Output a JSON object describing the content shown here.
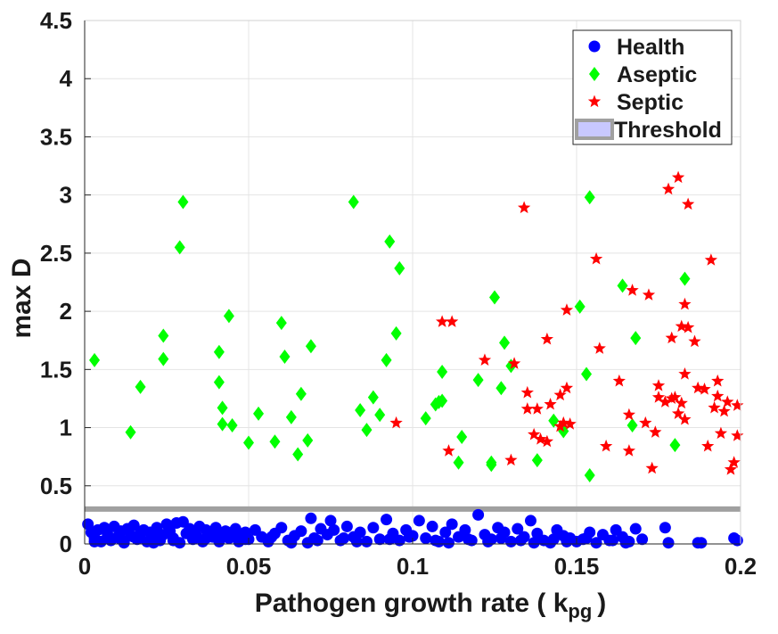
{
  "chart_data": {
    "type": "scatter",
    "xlabel": "Pathogen growth rate ( k",
    "xlabel_sub": "pg",
    "xlabel_close": ")",
    "ylabel": "max D",
    "xlim": [
      0,
      0.2
    ],
    "ylim": [
      0,
      4.5
    ],
    "x_ticks": [
      0,
      0.05,
      0.1,
      0.15,
      0.2
    ],
    "x_tick_labels": [
      "0",
      "0.05",
      "0.1",
      "0.15",
      "0.2"
    ],
    "y_ticks": [
      0,
      0.5,
      1,
      1.5,
      2,
      2.5,
      3,
      3.5,
      4,
      4.5
    ],
    "y_tick_labels": [
      "0",
      "0.5",
      "1",
      "1.5",
      "2",
      "2.5",
      "3",
      "3.5",
      "4",
      "4.5"
    ],
    "grid": true,
    "legend_position": "top-right",
    "threshold": {
      "name": "Threshold",
      "y": 0.3,
      "color": "#a0a0a0",
      "legend_fill": "#c8c8ff"
    },
    "series": [
      {
        "name": "Health",
        "marker": "circle",
        "color": "#0000ff",
        "x": [
          0.001,
          0.002,
          0.003,
          0.004,
          0.005,
          0.006,
          0.007,
          0.008,
          0.009,
          0.01,
          0.011,
          0.012,
          0.013,
          0.014,
          0.015,
          0.016,
          0.017,
          0.018,
          0.019,
          0.02,
          0.021,
          0.022,
          0.023,
          0.024,
          0.025,
          0.026,
          0.027,
          0.028,
          0.029,
          0.03,
          0.031,
          0.032,
          0.033,
          0.034,
          0.035,
          0.036,
          0.037,
          0.038,
          0.039,
          0.04,
          0.041,
          0.042,
          0.043,
          0.044,
          0.045,
          0.046,
          0.047,
          0.048,
          0.049,
          0.05,
          0.052,
          0.054,
          0.056,
          0.058,
          0.06,
          0.062,
          0.064,
          0.066,
          0.068,
          0.069,
          0.07,
          0.072,
          0.074,
          0.075,
          0.076,
          0.078,
          0.08,
          0.082,
          0.084,
          0.086,
          0.088,
          0.09,
          0.092,
          0.094,
          0.096,
          0.098,
          0.1,
          0.102,
          0.104,
          0.106,
          0.108,
          0.11,
          0.112,
          0.114,
          0.116,
          0.118,
          0.12,
          0.122,
          0.124,
          0.126,
          0.128,
          0.13,
          0.132,
          0.134,
          0.136,
          0.138,
          0.14,
          0.142,
          0.144,
          0.146,
          0.148,
          0.15,
          0.152,
          0.154,
          0.156,
          0.158,
          0.16,
          0.162,
          0.164,
          0.166,
          0.168,
          0.17,
          0.177,
          0.178,
          0.187,
          0.188,
          0.198,
          0.199,
          0.003,
          0.011,
          0.015,
          0.021,
          0.027,
          0.037,
          0.041,
          0.049,
          0.057,
          0.063,
          0.071,
          0.079,
          0.083,
          0.093,
          0.099,
          0.107,
          0.111,
          0.117,
          0.123,
          0.127,
          0.133,
          0.137,
          0.143,
          0.147,
          0.153,
          0.161,
          0.165
        ],
        "y": [
          0.17,
          0.1,
          0.05,
          0.12,
          0.02,
          0.14,
          0.08,
          0.03,
          0.15,
          0.06,
          0.11,
          0.01,
          0.13,
          0.07,
          0.16,
          0.04,
          0.09,
          0.12,
          0.02,
          0.1,
          0.06,
          0.14,
          0.03,
          0.08,
          0.17,
          0.11,
          0.05,
          0.18,
          0.01,
          0.19,
          0.09,
          0.13,
          0.04,
          0.07,
          0.15,
          0.02,
          0.12,
          0.1,
          0.06,
          0.14,
          0.03,
          0.08,
          0.11,
          0.05,
          0.09,
          0.13,
          0.02,
          0.07,
          0.1,
          0.04,
          0.12,
          0.06,
          0.02,
          0.09,
          0.14,
          0.03,
          0.07,
          0.11,
          0.01,
          0.22,
          0.05,
          0.13,
          0.08,
          0.2,
          0.12,
          0.03,
          0.15,
          0.06,
          0.1,
          0.02,
          0.14,
          0.04,
          0.21,
          0.09,
          0.03,
          0.12,
          0.07,
          0.2,
          0.05,
          0.15,
          0.02,
          0.1,
          0.17,
          0.06,
          0.12,
          0.03,
          0.25,
          0.08,
          0.04,
          0.14,
          0.1,
          0.02,
          0.13,
          0.06,
          0.2,
          0.09,
          0.03,
          0.01,
          0.12,
          0.07,
          0.05,
          0.02,
          0.04,
          0.1,
          0.01,
          0.08,
          0.03,
          0.12,
          0.06,
          0.02,
          0.13,
          0.04,
          0.14,
          0.01,
          0.01,
          0.01,
          0.05,
          0.03,
          0.02,
          0.04,
          0.06,
          0.01,
          0.03,
          0.05,
          0.02,
          0.04,
          0.06,
          0.01,
          0.03,
          0.05,
          0.02,
          0.04,
          0.06,
          0.03,
          0.01,
          0.04,
          0.02,
          0.05,
          0.03,
          0.01,
          0.04,
          0.02,
          0.05,
          0.03,
          0.01
        ]
      },
      {
        "name": "Aseptic",
        "marker": "diamond",
        "color": "#00ff00",
        "x": [
          0.003,
          0.014,
          0.017,
          0.024,
          0.024,
          0.029,
          0.03,
          0.041,
          0.041,
          0.042,
          0.042,
          0.044,
          0.045,
          0.05,
          0.053,
          0.058,
          0.06,
          0.061,
          0.063,
          0.065,
          0.066,
          0.068,
          0.069,
          0.082,
          0.084,
          0.086,
          0.088,
          0.09,
          0.092,
          0.093,
          0.095,
          0.096,
          0.104,
          0.107,
          0.108,
          0.109,
          0.109,
          0.114,
          0.115,
          0.12,
          0.124,
          0.124,
          0.125,
          0.127,
          0.128,
          0.13,
          0.138,
          0.143,
          0.146,
          0.151,
          0.153,
          0.154,
          0.154,
          0.164,
          0.167,
          0.168,
          0.18,
          0.183
        ],
        "y": [
          1.58,
          0.96,
          1.35,
          1.79,
          1.59,
          2.55,
          2.94,
          1.65,
          1.39,
          1.17,
          1.03,
          1.96,
          1.02,
          0.87,
          1.12,
          0.88,
          1.9,
          1.61,
          1.09,
          0.77,
          1.29,
          0.89,
          1.7,
          2.94,
          1.15,
          0.98,
          1.26,
          1.11,
          1.58,
          2.6,
          1.81,
          2.37,
          1.08,
          1.2,
          1.22,
          1.48,
          1.23,
          0.7,
          0.92,
          1.41,
          0.68,
          0.7,
          2.12,
          1.34,
          1.73,
          1.53,
          0.72,
          1.06,
          0.97,
          2.04,
          1.46,
          2.98,
          0.59,
          2.22,
          1.02,
          1.77,
          0.85,
          2.28
        ]
      },
      {
        "name": "Septic",
        "marker": "star",
        "color": "#ff0000",
        "x": [
          0.095,
          0.109,
          0.112,
          0.111,
          0.122,
          0.13,
          0.131,
          0.134,
          0.135,
          0.135,
          0.137,
          0.138,
          0.139,
          0.141,
          0.141,
          0.142,
          0.145,
          0.145,
          0.146,
          0.147,
          0.147,
          0.148,
          0.156,
          0.157,
          0.159,
          0.163,
          0.166,
          0.166,
          0.167,
          0.171,
          0.172,
          0.173,
          0.174,
          0.175,
          0.175,
          0.177,
          0.178,
          0.179,
          0.179,
          0.18,
          0.181,
          0.181,
          0.182,
          0.182,
          0.183,
          0.183,
          0.183,
          0.184,
          0.184,
          0.186,
          0.187,
          0.189,
          0.19,
          0.191,
          0.192,
          0.193,
          0.193,
          0.194,
          0.195,
          0.196,
          0.197,
          0.198,
          0.199,
          0.199
        ],
        "y": [
          1.04,
          1.91,
          1.91,
          0.8,
          1.58,
          0.72,
          1.55,
          2.89,
          1.16,
          1.3,
          0.94,
          1.16,
          0.9,
          1.76,
          0.88,
          1.2,
          1.01,
          1.28,
          1.04,
          1.34,
          2.01,
          1.03,
          2.45,
          1.68,
          0.84,
          1.4,
          1.11,
          0.8,
          2.18,
          1.04,
          2.14,
          0.65,
          0.96,
          1.36,
          1.26,
          1.22,
          3.05,
          1.77,
          1.25,
          1.26,
          3.15,
          1.12,
          1.21,
          1.87,
          1.46,
          1.07,
          2.06,
          1.86,
          2.92,
          1.74,
          1.34,
          1.33,
          0.84,
          2.44,
          1.17,
          1.4,
          1.27,
          0.95,
          1.14,
          1.22,
          0.64,
          0.7,
          1.19,
          0.93
        ]
      }
    ]
  }
}
